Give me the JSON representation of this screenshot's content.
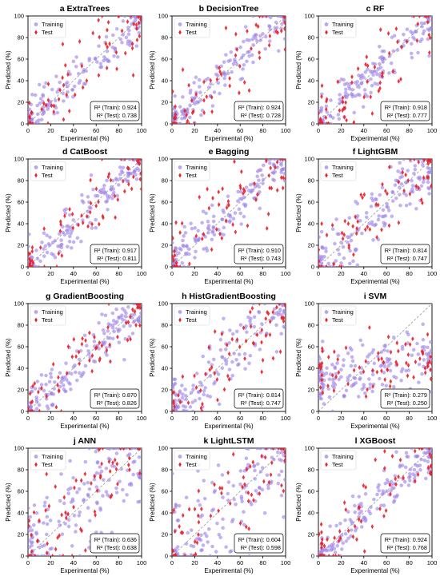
{
  "figure": {
    "colors": {
      "training": "#9b7fe6",
      "training_edge": "#b9a4f0",
      "test": "#e8212a",
      "diagonal": "#9a9a9a",
      "axis": "#000000",
      "background": "#ffffff"
    }
  },
  "chart_data": [
    {
      "letter": "a",
      "title": "a ExtraTrees",
      "type": "scatter",
      "xlabel": "Experimental (%)",
      "ylabel": "Predicted (%)",
      "xlim": [
        0,
        100
      ],
      "ylim": [
        0,
        100
      ],
      "xticks": [
        "0",
        "20",
        "40",
        "60",
        "80",
        "100"
      ],
      "yticks": [
        "0",
        "20",
        "40",
        "60",
        "80",
        "100"
      ],
      "legend": {
        "position": "top-left",
        "entries": [
          "Training",
          "Test"
        ]
      },
      "stats": [
        "R² (Train): 0.924",
        "R² (Test): 0.738"
      ],
      "r2_train": 0.924,
      "r2_test": 0.738,
      "diagonal": true,
      "grid": false,
      "series": [
        {
          "name": "Training",
          "marker": "circle"
        },
        {
          "name": "Test",
          "marker": "diamond"
        }
      ]
    },
    {
      "letter": "b",
      "title": "b DecisionTree",
      "type": "scatter",
      "xlabel": "Experimental (%)",
      "ylabel": "Predicted (%)",
      "xlim": [
        0,
        100
      ],
      "ylim": [
        0,
        100
      ],
      "xticks": [
        "0",
        "20",
        "40",
        "60",
        "80",
        "100"
      ],
      "yticks": [
        "0",
        "20",
        "40",
        "60",
        "80",
        "100"
      ],
      "legend": {
        "position": "top-left",
        "entries": [
          "Training",
          "Test"
        ]
      },
      "stats": [
        "R² (Train): 0.924",
        "R² (Test): 0.728"
      ],
      "r2_train": 0.924,
      "r2_test": 0.728,
      "diagonal": true,
      "grid": false,
      "series": [
        {
          "name": "Training",
          "marker": "circle"
        },
        {
          "name": "Test",
          "marker": "diamond"
        }
      ]
    },
    {
      "letter": "c",
      "title": "c RF",
      "type": "scatter",
      "xlabel": "Experimental (%)",
      "ylabel": "Predicted (%)",
      "xlim": [
        0,
        100
      ],
      "ylim": [
        0,
        100
      ],
      "xticks": [
        "0",
        "20",
        "40",
        "60",
        "80",
        "100"
      ],
      "yticks": [
        "0",
        "20",
        "40",
        "60",
        "80",
        "100"
      ],
      "legend": {
        "position": "top-left",
        "entries": [
          "Training",
          "Test"
        ]
      },
      "stats": [
        "R² (Train): 0.918",
        "R² (Test): 0.777"
      ],
      "r2_train": 0.918,
      "r2_test": 0.777,
      "diagonal": true,
      "grid": false,
      "series": [
        {
          "name": "Training",
          "marker": "circle"
        },
        {
          "name": "Test",
          "marker": "diamond"
        }
      ]
    },
    {
      "letter": "d",
      "title": "d CatBoost",
      "type": "scatter",
      "xlabel": "Experimental (%)",
      "ylabel": "Predicted (%)",
      "xlim": [
        0,
        100
      ],
      "ylim": [
        0,
        100
      ],
      "xticks": [
        "0",
        "20",
        "40",
        "60",
        "80",
        "100"
      ],
      "yticks": [
        "0",
        "20",
        "40",
        "60",
        "80",
        "100"
      ],
      "legend": {
        "position": "top-left",
        "entries": [
          "Training",
          "Test"
        ]
      },
      "stats": [
        "R² (Train): 0.917",
        "R² (Test): 0.811"
      ],
      "r2_train": 0.917,
      "r2_test": 0.811,
      "diagonal": true,
      "grid": false,
      "series": [
        {
          "name": "Training",
          "marker": "circle"
        },
        {
          "name": "Test",
          "marker": "diamond"
        }
      ]
    },
    {
      "letter": "e",
      "title": "e Bagging",
      "type": "scatter",
      "xlabel": "Experimental (%)",
      "ylabel": "Predicted (%)",
      "xlim": [
        0,
        100
      ],
      "ylim": [
        0,
        100
      ],
      "xticks": [
        "0",
        "20",
        "40",
        "60",
        "80",
        "100"
      ],
      "yticks": [
        "0",
        "20",
        "40",
        "60",
        "80",
        "100"
      ],
      "legend": {
        "position": "top-left",
        "entries": [
          "Training",
          "Test"
        ]
      },
      "stats": [
        "R² (Train): 0.910",
        "R² (Test): 0.743"
      ],
      "r2_train": 0.91,
      "r2_test": 0.743,
      "diagonal": true,
      "grid": false,
      "series": [
        {
          "name": "Training",
          "marker": "circle"
        },
        {
          "name": "Test",
          "marker": "diamond"
        }
      ]
    },
    {
      "letter": "f",
      "title": "f LightGBM",
      "type": "scatter",
      "xlabel": "Experimental (%)",
      "ylabel": "Predicted (%)",
      "xlim": [
        0,
        100
      ],
      "ylim": [
        0,
        100
      ],
      "xticks": [
        "0",
        "20",
        "40",
        "60",
        "80",
        "100"
      ],
      "yticks": [
        "0",
        "20",
        "40",
        "60",
        "80",
        "100"
      ],
      "legend": {
        "position": "top-left",
        "entries": [
          "Training",
          "Test"
        ]
      },
      "stats": [
        "R² (Train): 0.814",
        "R² (Test): 0.747"
      ],
      "r2_train": 0.814,
      "r2_test": 0.747,
      "diagonal": true,
      "grid": false,
      "series": [
        {
          "name": "Training",
          "marker": "circle"
        },
        {
          "name": "Test",
          "marker": "diamond"
        }
      ]
    },
    {
      "letter": "g",
      "title": "g GradientBoosting",
      "type": "scatter",
      "xlabel": "Experimental (%)",
      "ylabel": "Predicted (%)",
      "xlim": [
        0,
        100
      ],
      "ylim": [
        0,
        100
      ],
      "xticks": [
        "0",
        "20",
        "40",
        "60",
        "80",
        "100"
      ],
      "yticks": [
        "0",
        "20",
        "40",
        "60",
        "80",
        "100"
      ],
      "legend": {
        "position": "top-left",
        "entries": [
          "Training",
          "Test"
        ]
      },
      "stats": [
        "R² (Train): 0.870",
        "R² (Test): 0.826"
      ],
      "r2_train": 0.87,
      "r2_test": 0.826,
      "diagonal": true,
      "grid": false,
      "series": [
        {
          "name": "Training",
          "marker": "circle"
        },
        {
          "name": "Test",
          "marker": "diamond"
        }
      ]
    },
    {
      "letter": "h",
      "title": "h HistGradientBoosting",
      "type": "scatter",
      "xlabel": "Experimental (%)",
      "ylabel": "Predicted (%)",
      "xlim": [
        0,
        100
      ],
      "ylim": [
        0,
        100
      ],
      "xticks": [
        "0",
        "20",
        "40",
        "60",
        "80",
        "100"
      ],
      "yticks": [
        "0",
        "20",
        "40",
        "60",
        "80",
        "100"
      ],
      "legend": {
        "position": "top-left",
        "entries": [
          "Training",
          "Test"
        ]
      },
      "stats": [
        "R² (Train): 0.814",
        "R² (Test): 0.747"
      ],
      "r2_train": 0.814,
      "r2_test": 0.747,
      "diagonal": true,
      "grid": false,
      "series": [
        {
          "name": "Training",
          "marker": "circle"
        },
        {
          "name": "Test",
          "marker": "diamond"
        }
      ]
    },
    {
      "letter": "i",
      "title": "i SVM",
      "type": "scatter",
      "xlabel": "Experimental (%)",
      "ylabel": "Predicted (%)",
      "xlim": [
        0,
        100
      ],
      "ylim": [
        0,
        100
      ],
      "xticks": [
        "0",
        "20",
        "40",
        "60",
        "80",
        "100"
      ],
      "yticks": [
        "0",
        "20",
        "40",
        "60",
        "80",
        "100"
      ],
      "legend": {
        "position": "top-left",
        "entries": [
          "Training",
          "Test"
        ]
      },
      "stats": [
        "R² (Train): 0.279",
        "R² (Test): 0.250"
      ],
      "r2_train": 0.279,
      "r2_test": 0.25,
      "diagonal": true,
      "grid": false,
      "series": [
        {
          "name": "Training",
          "marker": "circle"
        },
        {
          "name": "Test",
          "marker": "diamond"
        }
      ]
    },
    {
      "letter": "j",
      "title": "j ANN",
      "type": "scatter",
      "xlabel": "Experimental (%)",
      "ylabel": "Predicted (%)",
      "xlim": [
        0,
        100
      ],
      "ylim": [
        0,
        100
      ],
      "xticks": [
        "0",
        "20",
        "40",
        "60",
        "80",
        "100"
      ],
      "yticks": [
        "0",
        "20",
        "40",
        "60",
        "80",
        "100"
      ],
      "legend": {
        "position": "top-left",
        "entries": [
          "Training",
          "Test"
        ]
      },
      "stats": [
        "R² (Train): 0.636",
        "R² (Test): 0.638"
      ],
      "r2_train": 0.636,
      "r2_test": 0.638,
      "diagonal": true,
      "grid": false,
      "series": [
        {
          "name": "Training",
          "marker": "circle"
        },
        {
          "name": "Test",
          "marker": "diamond"
        }
      ]
    },
    {
      "letter": "k",
      "title": "k LightLSTM",
      "type": "scatter",
      "xlabel": "Experimental (%)",
      "ylabel": "Predicted (%)",
      "xlim": [
        0,
        100
      ],
      "ylim": [
        0,
        100
      ],
      "xticks": [
        "0",
        "20",
        "40",
        "60",
        "80",
        "100"
      ],
      "yticks": [
        "0",
        "20",
        "40",
        "60",
        "80",
        "100"
      ],
      "legend": {
        "position": "top-left",
        "entries": [
          "Training",
          "Test"
        ]
      },
      "stats": [
        "R² (Train): 0.604",
        "R² (Test): 0.598"
      ],
      "r2_train": 0.604,
      "r2_test": 0.598,
      "diagonal": true,
      "grid": false,
      "series": [
        {
          "name": "Training",
          "marker": "circle"
        },
        {
          "name": "Test",
          "marker": "diamond"
        }
      ]
    },
    {
      "letter": "l",
      "title": "l XGBoost",
      "type": "scatter",
      "xlabel": "Experimental (%)",
      "ylabel": "Predicted (%)",
      "xlim": [
        0,
        100
      ],
      "ylim": [
        0,
        100
      ],
      "xticks": [
        "0",
        "20",
        "40",
        "60",
        "80",
        "100"
      ],
      "yticks": [
        "0",
        "20",
        "40",
        "60",
        "80",
        "100"
      ],
      "legend": {
        "position": "top-left",
        "entries": [
          "Training",
          "Test"
        ]
      },
      "stats": [
        "R² (Train): 0.924",
        "R² (Test): 0.768"
      ],
      "r2_train": 0.924,
      "r2_test": 0.768,
      "diagonal": true,
      "grid": false,
      "series": [
        {
          "name": "Training",
          "marker": "circle"
        },
        {
          "name": "Test",
          "marker": "diamond"
        }
      ]
    }
  ]
}
